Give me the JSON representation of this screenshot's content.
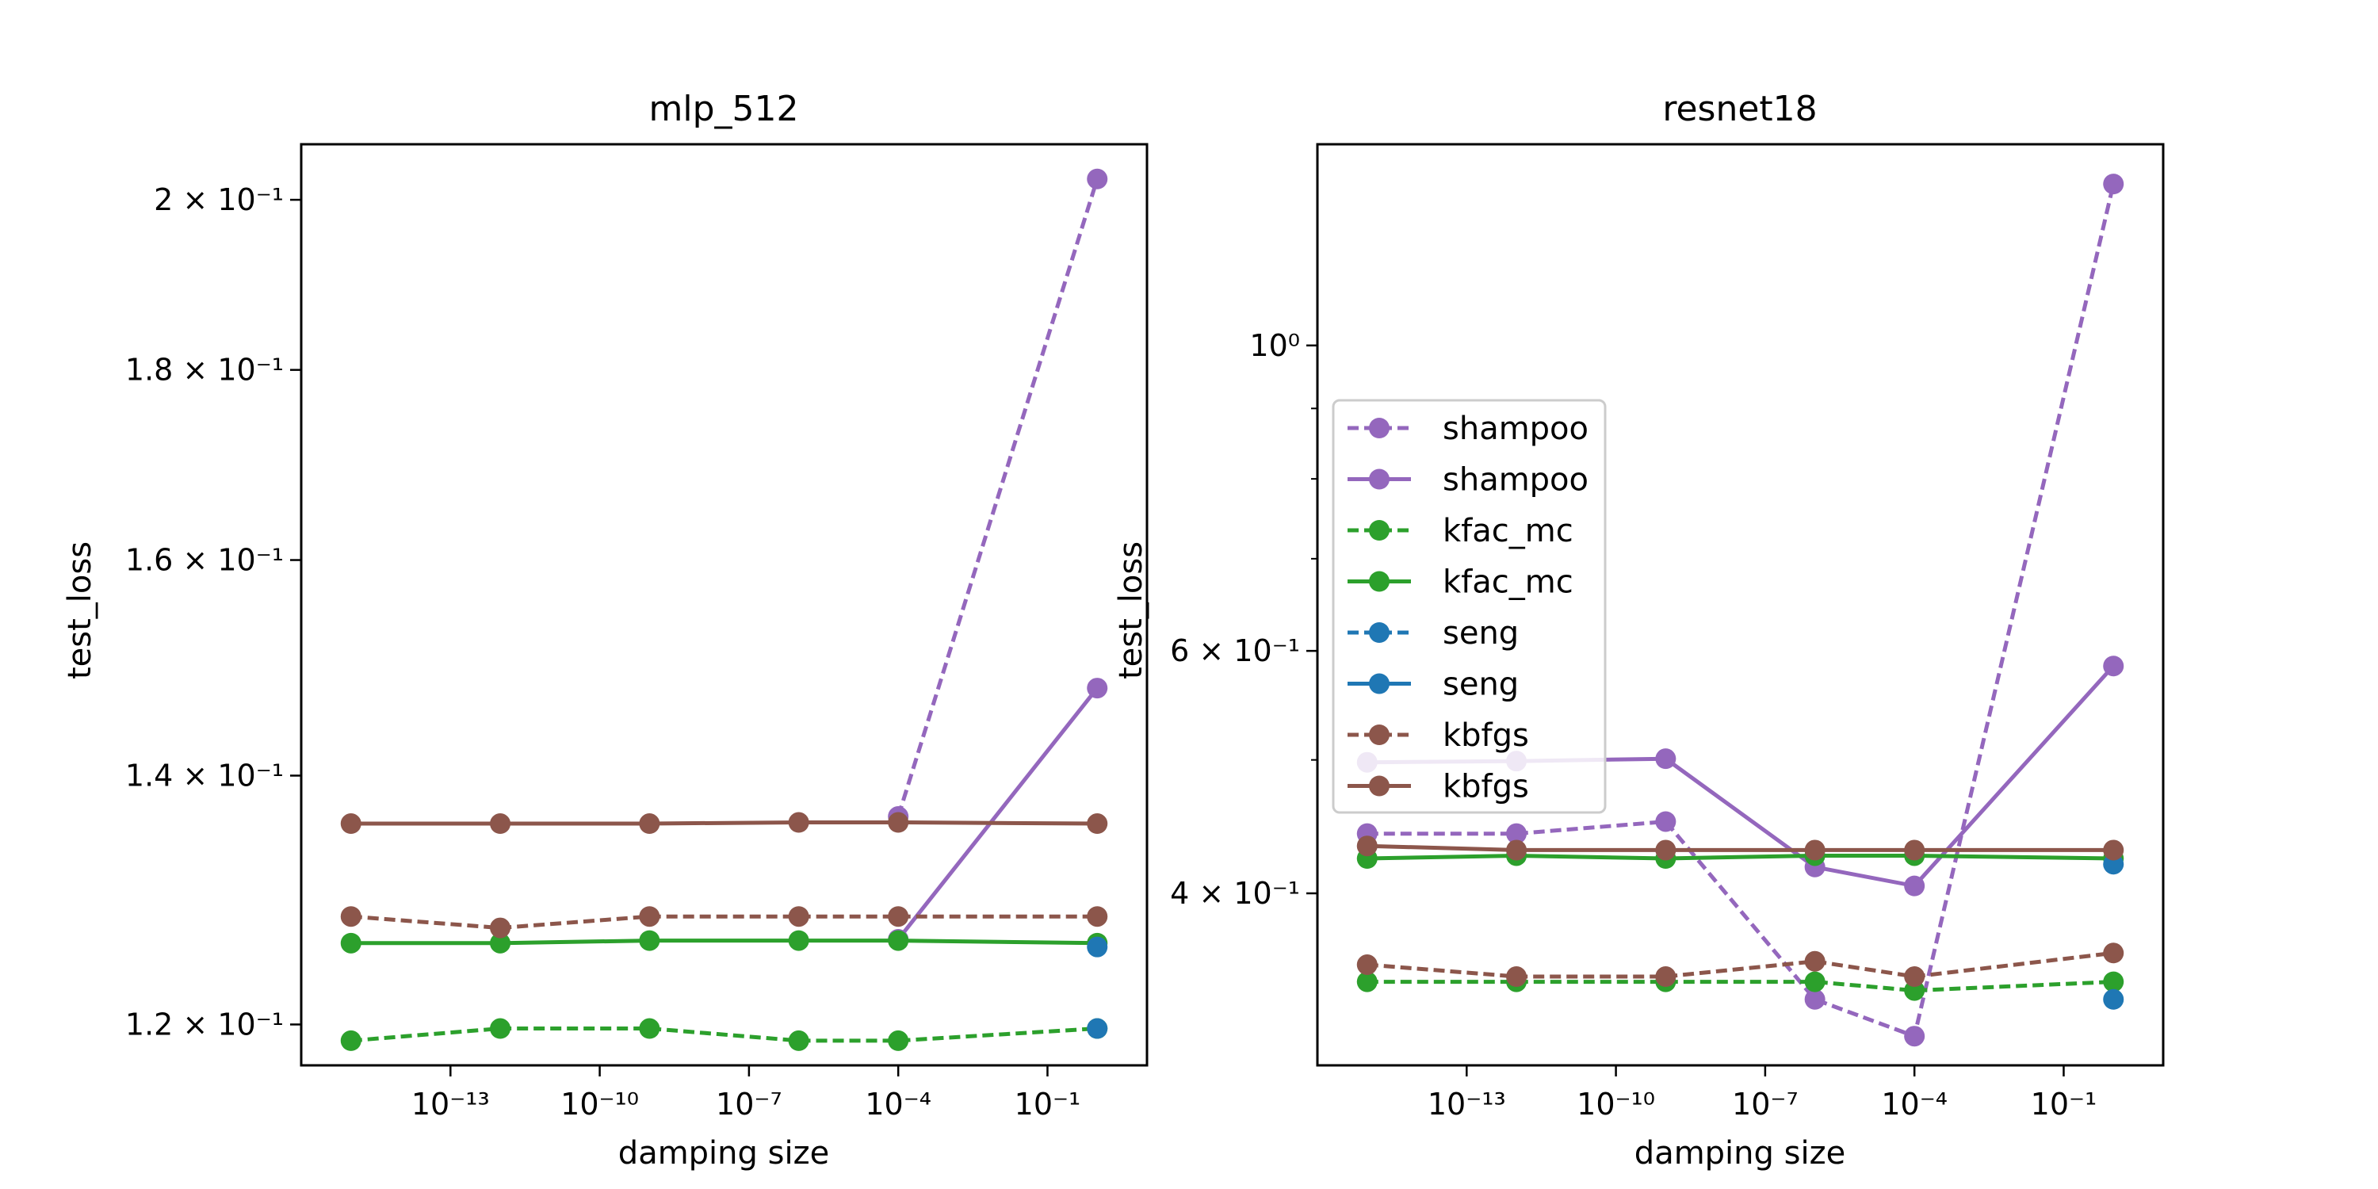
{
  "chart_data": [
    {
      "type": "line",
      "title": "mlp_512",
      "xlabel": "damping size",
      "ylabel": "test_loss",
      "x_scale": "log",
      "y_scale": "log",
      "x_ticks": [
        {
          "value": 1e-13,
          "label": "10⁻¹³"
        },
        {
          "value": 1e-10,
          "label": "10⁻¹⁰"
        },
        {
          "value": 1e-07,
          "label": "10⁻⁷"
        },
        {
          "value": 0.0001,
          "label": "10⁻⁴"
        },
        {
          "value": 0.1,
          "label": "10⁻¹"
        }
      ],
      "y_ticks": [
        {
          "value": 0.12,
          "label": "1.2 × 10⁻¹"
        },
        {
          "value": 0.14,
          "label": "1.4 × 10⁻¹"
        },
        {
          "value": 0.16,
          "label": "1.6 × 10⁻¹"
        },
        {
          "value": 0.18,
          "label": "1.8 × 10⁻¹"
        },
        {
          "value": 0.2,
          "label": "2 × 10⁻¹"
        }
      ],
      "xlim": [
        1e-16,
        10
      ],
      "ylim": [
        0.117,
        0.207
      ],
      "grid": false,
      "series": [
        {
          "name": "shampoo",
          "color": "#9467bd",
          "style": "dashed",
          "x": [
            0.0001,
            1
          ],
          "y": [
            0.1365,
            0.2026
          ]
        },
        {
          "name": "shampoo",
          "color": "#9467bd",
          "style": "solid",
          "x": [
            0.0001,
            1
          ],
          "y": [
            0.1265,
            0.1478
          ]
        },
        {
          "name": "kfac_mc",
          "color": "#2ca02c",
          "style": "dashed",
          "x": [
            1e-15,
            1e-12,
            1e-09,
            1e-06,
            0.0001,
            1
          ],
          "y": [
            0.1188,
            0.1197,
            0.1197,
            0.1188,
            0.1188,
            0.1197
          ]
        },
        {
          "name": "kfac_mc",
          "color": "#2ca02c",
          "style": "solid",
          "x": [
            1e-15,
            1e-12,
            1e-09,
            1e-06,
            0.0001,
            1
          ],
          "y": [
            0.1262,
            0.1262,
            0.1264,
            0.1264,
            0.1264,
            0.1262
          ]
        },
        {
          "name": "seng",
          "color": "#1f77b4",
          "style": "dashed",
          "x": [
            1
          ],
          "y": [
            0.1197
          ]
        },
        {
          "name": "seng",
          "color": "#1f77b4",
          "style": "solid",
          "x": [
            1
          ],
          "y": [
            0.1259
          ]
        },
        {
          "name": "kbfgs",
          "color": "#8c564b",
          "style": "dashed",
          "x": [
            1e-15,
            1e-12,
            1e-09,
            1e-06,
            0.0001,
            1
          ],
          "y": [
            0.1283,
            0.1274,
            0.1283,
            0.1283,
            0.1283,
            0.1283
          ]
        },
        {
          "name": "kbfgs",
          "color": "#8c564b",
          "style": "solid",
          "x": [
            1e-15,
            1e-12,
            1e-09,
            1e-06,
            0.0001,
            1
          ],
          "y": [
            0.1359,
            0.1359,
            0.1359,
            0.136,
            0.136,
            0.1359
          ]
        }
      ]
    },
    {
      "type": "line",
      "title": "resnet18",
      "xlabel": "damping size",
      "ylabel": "test_loss",
      "x_scale": "log",
      "y_scale": "log",
      "x_ticks": [
        {
          "value": 1e-13,
          "label": "10⁻¹³"
        },
        {
          "value": 1e-10,
          "label": "10⁻¹⁰"
        },
        {
          "value": 1e-07,
          "label": "10⁻⁷"
        },
        {
          "value": 0.0001,
          "label": "10⁻⁴"
        },
        {
          "value": 0.1,
          "label": "10⁻¹"
        }
      ],
      "y_ticks": [
        {
          "value": 0.4,
          "label": "4 × 10⁻¹"
        },
        {
          "value": 0.6,
          "label": "6 × 10⁻¹"
        },
        {
          "value": 1,
          "label": "10⁰"
        }
      ],
      "y_minor_ticks": [
        0.5,
        0.7,
        0.8,
        0.9
      ],
      "xlim": [
        1e-16,
        10
      ],
      "ylim": [
        0.3,
        1.4
      ],
      "grid": false,
      "legend": "center-left",
      "series": [
        {
          "name": "shampoo",
          "color": "#9467bd",
          "style": "dashed",
          "x": [
            1e-15,
            1e-12,
            1e-09,
            1e-06,
            0.0001,
            1
          ],
          "y": [
            0.442,
            0.442,
            0.451,
            0.335,
            0.315,
            1.31
          ]
        },
        {
          "name": "shampoo",
          "color": "#9467bd",
          "style": "solid",
          "x": [
            1e-15,
            1e-12,
            1e-09,
            1e-06,
            0.0001,
            1
          ],
          "y": [
            0.498,
            0.499,
            0.501,
            0.418,
            0.405,
            0.585
          ]
        },
        {
          "name": "kfac_mc",
          "color": "#2ca02c",
          "style": "dashed",
          "x": [
            1e-15,
            1e-12,
            1e-09,
            1e-06,
            0.0001,
            1
          ],
          "y": [
            0.345,
            0.345,
            0.345,
            0.345,
            0.34,
            0.345
          ]
        },
        {
          "name": "kfac_mc",
          "color": "#2ca02c",
          "style": "solid",
          "x": [
            1e-15,
            1e-12,
            1e-09,
            1e-06,
            0.0001,
            1
          ],
          "y": [
            0.424,
            0.426,
            0.424,
            0.426,
            0.426,
            0.424
          ]
        },
        {
          "name": "seng",
          "color": "#1f77b4",
          "style": "dashed",
          "x": [
            1
          ],
          "y": [
            0.335
          ]
        },
        {
          "name": "seng",
          "color": "#1f77b4",
          "style": "solid",
          "x": [
            1
          ],
          "y": [
            0.42
          ]
        },
        {
          "name": "kbfgs",
          "color": "#8c564b",
          "style": "dashed",
          "x": [
            1e-15,
            1e-12,
            1e-09,
            1e-06,
            0.0001,
            1
          ],
          "y": [
            0.355,
            0.348,
            0.348,
            0.357,
            0.348,
            0.362
          ]
        },
        {
          "name": "kbfgs",
          "color": "#8c564b",
          "style": "solid",
          "x": [
            1e-15,
            1e-12,
            1e-09,
            1e-06,
            0.0001,
            1
          ],
          "y": [
            0.433,
            0.43,
            0.43,
            0.43,
            0.43,
            0.43
          ]
        }
      ]
    }
  ]
}
